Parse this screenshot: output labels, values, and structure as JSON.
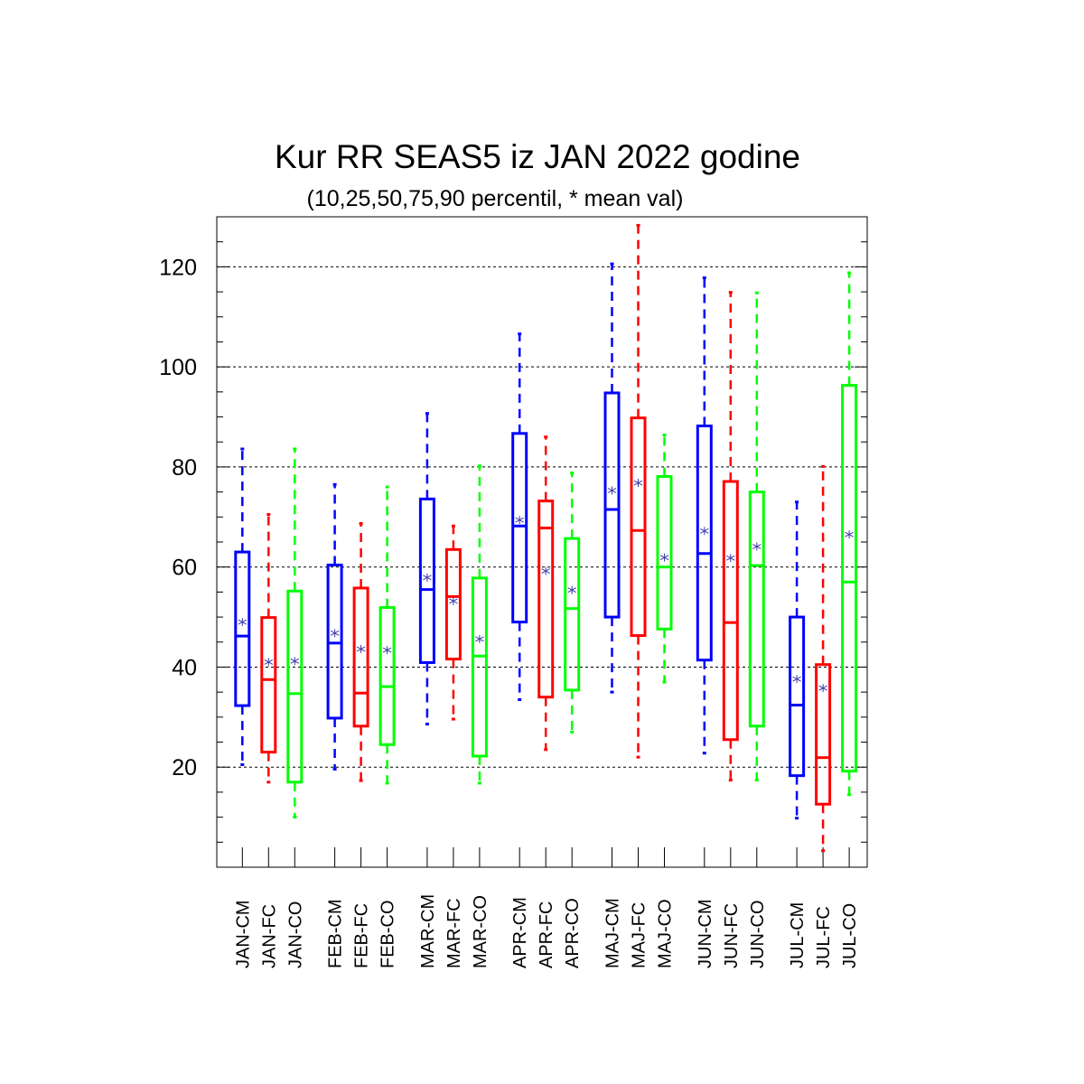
{
  "chart_data": {
    "type": "boxplot",
    "title": "Kur RR SEAS5 iz JAN 2022 godine",
    "subtitle": "(10,25,50,75,90 percentil, * mean val)",
    "ylim": [
      0,
      130
    ],
    "yticks": [
      20,
      40,
      60,
      80,
      100,
      120
    ],
    "grid": "horizontal dashed",
    "colors": {
      "CM": "#0000ff",
      "FC": "#ff0000",
      "CO": "#00ff00"
    },
    "boxes": [
      {
        "label": "JAN-CM",
        "p10": 20.5,
        "p25": 32.3,
        "p50": 46.2,
        "p75": 63.0,
        "p90": 83.6,
        "mean": 49.0
      },
      {
        "label": "JAN-FC",
        "p10": 17.0,
        "p25": 23.0,
        "p50": 37.5,
        "p75": 49.9,
        "p90": 70.5,
        "mean": 41.0
      },
      {
        "label": "JAN-CO",
        "p10": 10.0,
        "p25": 17.0,
        "p50": 34.7,
        "p75": 55.2,
        "p90": 83.6,
        "mean": 41.2
      },
      {
        "label": "FEB-CM",
        "p10": 19.6,
        "p25": 29.8,
        "p50": 44.8,
        "p75": 60.4,
        "p90": 76.5,
        "mean": 46.8
      },
      {
        "label": "FEB-FC",
        "p10": 17.3,
        "p25": 28.2,
        "p50": 34.8,
        "p75": 55.8,
        "p90": 68.7,
        "mean": 43.6
      },
      {
        "label": "FEB-CO",
        "p10": 16.8,
        "p25": 24.5,
        "p50": 36.1,
        "p75": 51.9,
        "p90": 76.0,
        "mean": 43.4
      },
      {
        "label": "MAR-CM",
        "p10": 28.6,
        "p25": 40.9,
        "p50": 55.5,
        "p75": 73.6,
        "p90": 90.7,
        "mean": 57.9
      },
      {
        "label": "MAR-FC",
        "p10": 29.6,
        "p25": 41.6,
        "p50": 54.1,
        "p75": 63.5,
        "p90": 68.2,
        "mean": 53.2
      },
      {
        "label": "MAR-CO",
        "p10": 16.8,
        "p25": 22.2,
        "p50": 42.2,
        "p75": 57.8,
        "p90": 80.2,
        "mean": 45.6
      },
      {
        "label": "APR-CM",
        "p10": 33.5,
        "p25": 49.0,
        "p50": 68.2,
        "p75": 86.7,
        "p90": 106.6,
        "mean": 69.4
      },
      {
        "label": "APR-FC",
        "p10": 23.5,
        "p25": 34.0,
        "p50": 67.8,
        "p75": 73.2,
        "p90": 86.0,
        "mean": 59.2
      },
      {
        "label": "APR-CO",
        "p10": 27.0,
        "p25": 35.4,
        "p50": 51.7,
        "p75": 65.7,
        "p90": 78.8,
        "mean": 55.4
      },
      {
        "label": "MAJ-CM",
        "p10": 35.0,
        "p25": 50.0,
        "p50": 71.5,
        "p75": 94.8,
        "p90": 120.6,
        "mean": 75.3
      },
      {
        "label": "MAJ-FC",
        "p10": 22.0,
        "p25": 46.3,
        "p50": 67.3,
        "p75": 89.8,
        "p90": 128.3,
        "mean": 76.8
      },
      {
        "label": "MAJ-CO",
        "p10": 37.0,
        "p25": 47.6,
        "p50": 60.0,
        "p75": 78.1,
        "p90": 86.4,
        "mean": 61.9
      },
      {
        "label": "JUN-CM",
        "p10": 22.8,
        "p25": 41.4,
        "p50": 62.7,
        "p75": 88.2,
        "p90": 117.8,
        "mean": 67.2
      },
      {
        "label": "JUN-FC",
        "p10": 17.4,
        "p25": 25.5,
        "p50": 48.9,
        "p75": 77.1,
        "p90": 114.9,
        "mean": 61.8
      },
      {
        "label": "JUN-CO",
        "p10": 17.4,
        "p25": 28.2,
        "p50": 60.3,
        "p75": 75.0,
        "p90": 114.8,
        "mean": 64.1
      },
      {
        "label": "JUL-CM",
        "p10": 9.8,
        "p25": 18.3,
        "p50": 32.4,
        "p75": 50.0,
        "p90": 73.0,
        "mean": 37.6
      },
      {
        "label": "JUL-FC",
        "p10": 3.3,
        "p25": 12.6,
        "p50": 21.9,
        "p75": 40.5,
        "p90": 80.1,
        "mean": 35.8
      },
      {
        "label": "JUL-CO",
        "p10": 14.5,
        "p25": 19.2,
        "p50": 57.0,
        "p75": 96.3,
        "p90": 118.8,
        "mean": 66.5
      }
    ]
  }
}
